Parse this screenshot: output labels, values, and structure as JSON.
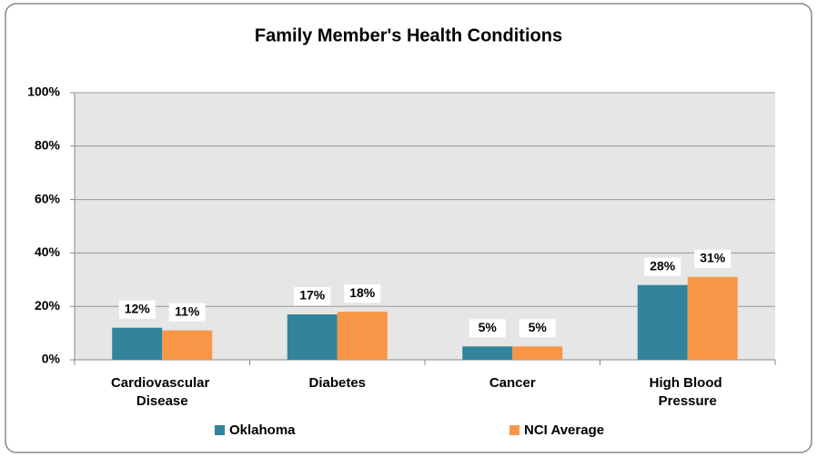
{
  "chart_data": {
    "type": "bar",
    "title": "Family Member's Health Conditions",
    "categories": [
      "Cardiovascular Disease",
      "Diabetes",
      "Cancer",
      "High Blood Pressure"
    ],
    "series": [
      {
        "name": "Oklahoma",
        "color": "#31849b",
        "values": [
          12,
          17,
          5,
          28
        ],
        "value_labels": [
          "12%",
          "17%",
          "5%",
          "28%"
        ]
      },
      {
        "name": "NCI Average",
        "color": "#f79646",
        "values": [
          11,
          18,
          5,
          31
        ],
        "value_labels": [
          "11%",
          "18%",
          "5%",
          "31%"
        ]
      }
    ],
    "ylim": [
      0,
      100
    ],
    "yticks": [
      {
        "value": 0,
        "label": "0%"
      },
      {
        "value": 20,
        "label": "20%"
      },
      {
        "value": 40,
        "label": "40%"
      },
      {
        "value": 60,
        "label": "60%"
      },
      {
        "value": 80,
        "label": "80%"
      },
      {
        "value": 100,
        "label": "100%"
      }
    ],
    "grid": true,
    "legend": "bottom"
  }
}
